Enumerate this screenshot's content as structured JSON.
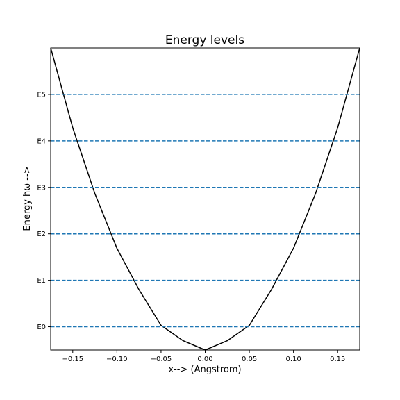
{
  "chart_data": {
    "type": "line",
    "title": "Energy levels",
    "xlabel": "x--> (Angstrom)",
    "ylabel": "Energy hω -->",
    "xlim": [
      -0.175,
      0.175
    ],
    "ylim": [
      -0.5,
      6.0
    ],
    "x_ticks": [
      -0.15,
      -0.1,
      -0.05,
      0.0,
      0.05,
      0.1,
      0.15
    ],
    "x_tick_labels": [
      "−0.15",
      "−0.10",
      "−0.05",
      "0.00",
      "0.05",
      "0.10",
      "0.15"
    ],
    "y_ticks": [
      0,
      1,
      2,
      3,
      4,
      5
    ],
    "y_tick_labels": [
      "E0",
      "E1",
      "E2",
      "E3",
      "E4",
      "E5"
    ],
    "grid": false,
    "series": [
      {
        "style": "solid",
        "color": "#000000",
        "x": [
          -0.175,
          -0.15,
          -0.125,
          -0.1,
          -0.075,
          -0.05,
          -0.025,
          0.0,
          0.025,
          0.05,
          0.075,
          0.1,
          0.125,
          0.15,
          0.175
        ],
        "y": [
          6.0,
          4.28,
          2.87,
          1.69,
          0.8,
          0.03,
          -0.3,
          -0.5,
          -0.3,
          0.03,
          0.8,
          1.69,
          2.87,
          4.28,
          6.0
        ]
      }
    ],
    "hlines": [
      {
        "y": 0,
        "style": "dashed",
        "color": "#1f77b4"
      },
      {
        "y": 1,
        "style": "dashed",
        "color": "#1f77b4"
      },
      {
        "y": 2,
        "style": "dashed",
        "color": "#1f77b4"
      },
      {
        "y": 3,
        "style": "dashed",
        "color": "#1f77b4"
      },
      {
        "y": 4,
        "style": "dashed",
        "color": "#1f77b4"
      },
      {
        "y": 5,
        "style": "dashed",
        "color": "#1f77b4"
      }
    ]
  }
}
